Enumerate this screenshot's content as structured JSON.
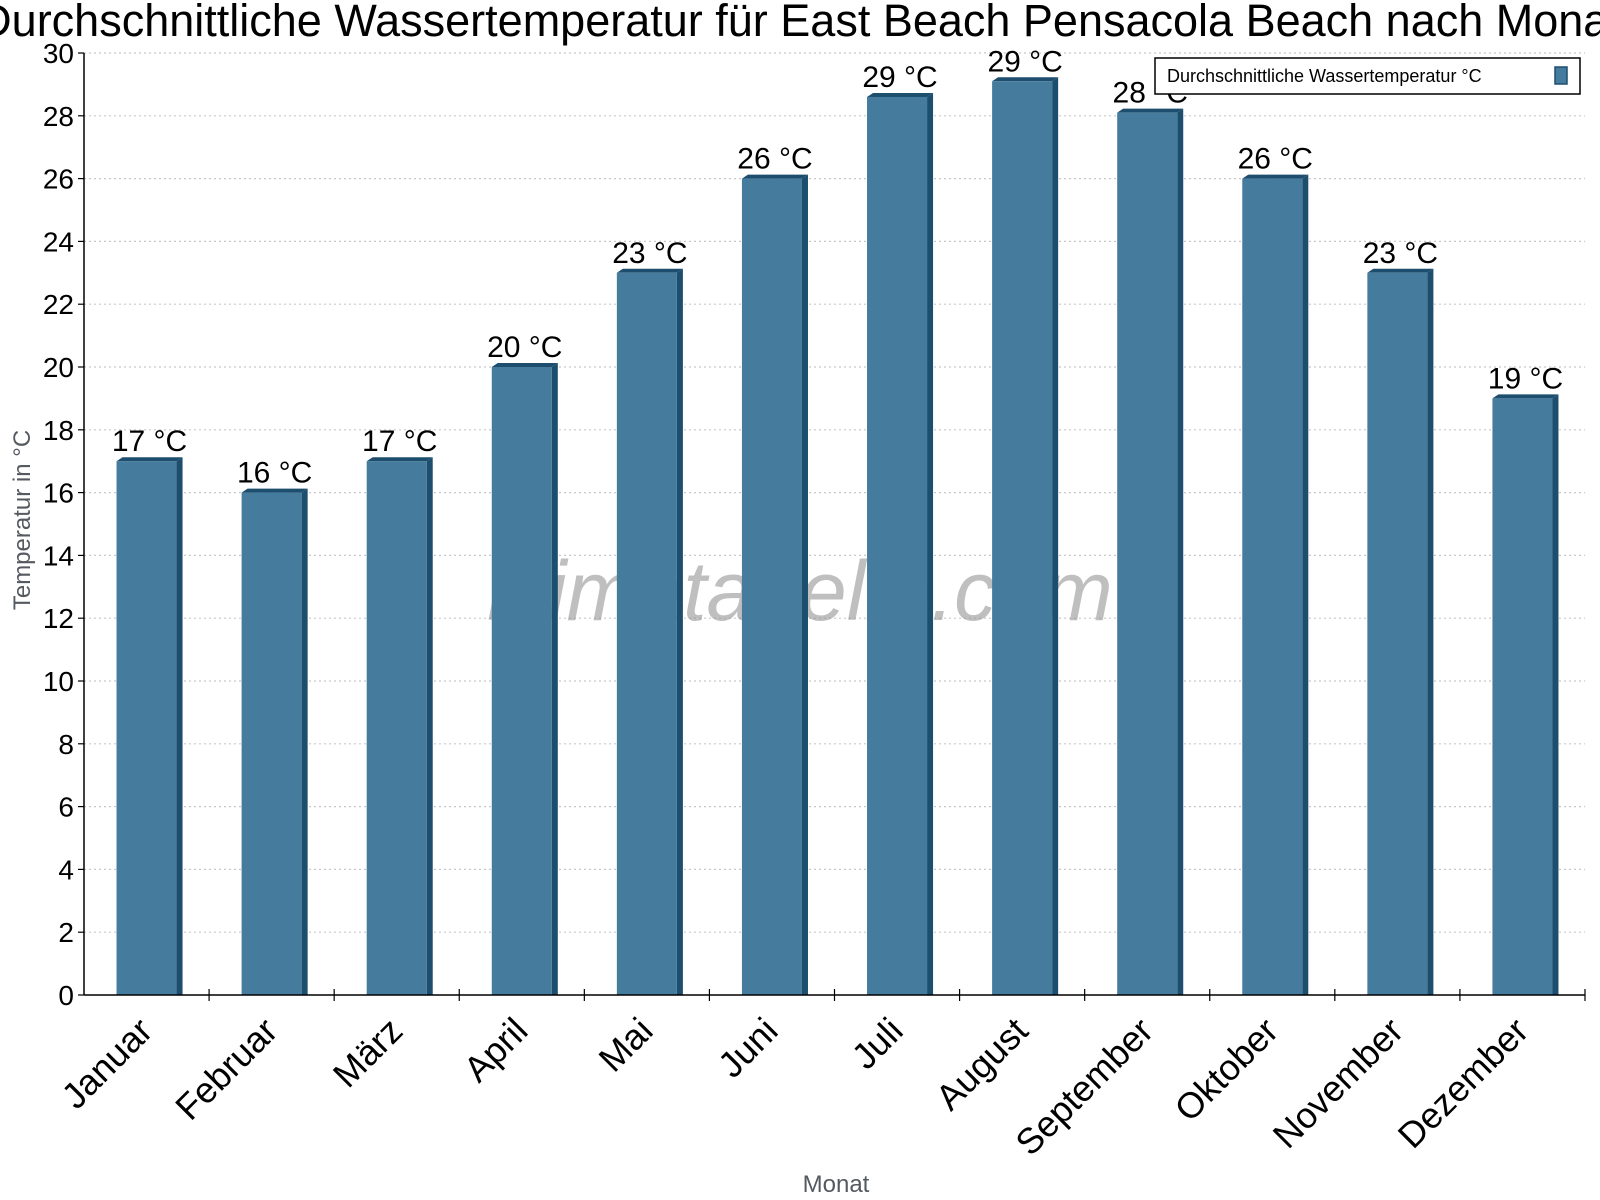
{
  "chart_data": {
    "type": "bar",
    "title": "Durchschnittliche Wassertemperatur für East Beach Pensacola Beach nach Monat",
    "xlabel": "Monat",
    "ylabel": "Temperatur in °C",
    "categories": [
      "Januar",
      "Februar",
      "März",
      "April",
      "Mai",
      "Juni",
      "Juli",
      "August",
      "September",
      "Oktober",
      "November",
      "Dezember"
    ],
    "series": [
      {
        "name": "Durchschnittliche Wassertemperatur °C",
        "values": [
          17,
          16,
          17,
          20,
          23,
          26,
          28.6,
          29.1,
          28.1,
          26,
          23,
          19
        ],
        "labels": [
          "17 °C",
          "16 °C",
          "17 °C",
          "20 °C",
          "23 °C",
          "26 °C",
          "29 °C",
          "29 °C",
          "28 °C",
          "26 °C",
          "23 °C",
          "19 °C"
        ]
      }
    ],
    "ylim": [
      0,
      30
    ],
    "yticks": [
      0,
      2,
      4,
      6,
      8,
      10,
      12,
      14,
      16,
      18,
      20,
      22,
      24,
      26,
      28,
      30
    ],
    "grid": "horizontal dotted",
    "legend_position": "top-right",
    "colors": {
      "bar": "#457b9d",
      "bar_dark": "#1d4e6e",
      "axis": "#000000",
      "grid": "#c8c8c8"
    }
  },
  "watermark": "klimatabelle.com"
}
